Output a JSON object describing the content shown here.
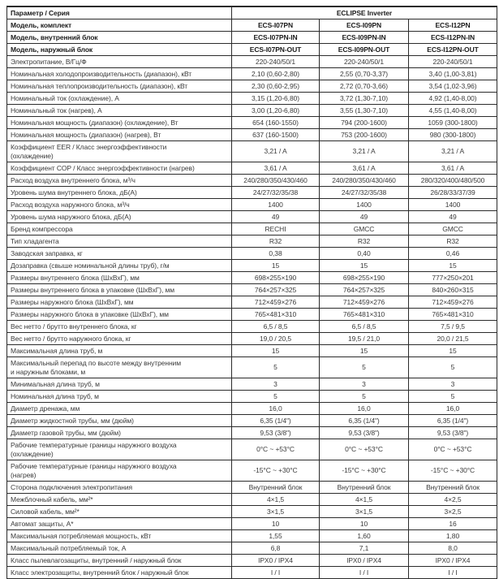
{
  "table": {
    "header": {
      "param_label": "Параметр / Серия",
      "series_label": "ECLIPSE Inverter"
    },
    "rows": [
      {
        "label": "Модель, комплект",
        "values": [
          "ECS-I07PN",
          "ECS-I09PN",
          "ECS-I12PN"
        ],
        "bold": true
      },
      {
        "label": "Модель, внутренний блок",
        "values": [
          "ECS-I07PN-IN",
          "ECS-I09PN-IN",
          "ECS-I12PN-IN"
        ],
        "bold": true
      },
      {
        "label": "Модель, наружный блок",
        "values": [
          "ECS-I07PN-OUT",
          "ECS-I09PN-OUT",
          "ECS-I12PN-OUT"
        ],
        "bold": true
      },
      {
        "label": "Электропитание, В/Гц/Ф",
        "values": [
          "220-240/50/1",
          "220-240/50/1",
          "220-240/50/1"
        ]
      },
      {
        "label": "Номинальная холодопроизводительность (диапазон), кВт",
        "values": [
          "2,10 (0,60-2,80)",
          "2,55 (0,70-3,37)",
          "3,40 (1,00-3,81)"
        ]
      },
      {
        "label": "Номинальная теплопроизводительность (диапазон), кВт",
        "values": [
          "2,30 (0,60-2,95)",
          "2,72 (0,70-3,66)",
          "3,54 (1,02-3,96)"
        ]
      },
      {
        "label": "Номинальный ток (охлаждение), А",
        "values": [
          "3,15 (1,20-6,80)",
          "3,72 (1,30-7,10)",
          "4,92 (1,40-8,00)"
        ]
      },
      {
        "label": "Номинальный ток (нагрев), А",
        "values": [
          "3,00 (1,20-6,80)",
          "3,55 (1,30-7,10)",
          "4,55 (1,40-8,00)"
        ]
      },
      {
        "label": "Номинальная мощность (диапазон) (охлаждение), Вт",
        "values": [
          "654 (160-1550)",
          "794 (200-1600)",
          "1059 (300-1800)"
        ]
      },
      {
        "label": "Номинальная мощность (диапазон) (нагрев), Вт",
        "values": [
          "637 (160-1500)",
          "753 (200-1600)",
          "980 (300-1800)"
        ]
      },
      {
        "label": "Коэффициент EER / Класс энергоэффективности\n(охлаждение)",
        "values": [
          "3,21 / A",
          "3,21 / A",
          "3,21 / A"
        ]
      },
      {
        "label": "Коэффициент COP / Класс энергоэффективности (нагрев)",
        "values": [
          "3,61 / A",
          "3,61 / A",
          "3,61 / A"
        ]
      },
      {
        "label": "Расход воздуха внутреннего блока, м³/ч",
        "values": [
          "240/280/350/430/460",
          "240/280/350/430/460",
          "280/320/400/480/500"
        ]
      },
      {
        "label": "Уровень шума внутреннего блока, дБ(А)",
        "values": [
          "24/27/32/35/38",
          "24/27/32/35/38",
          "26/28/33/37/39"
        ]
      },
      {
        "label": "Расход воздуха наружного блока, м³/ч",
        "values": [
          "1400",
          "1400",
          "1400"
        ]
      },
      {
        "label": "Уровень шума наружного блока, дБ(А)",
        "values": [
          "49",
          "49",
          "49"
        ]
      },
      {
        "label": "Бренд компрессора",
        "values": [
          "RECHI",
          "GMCC",
          "GMCC"
        ]
      },
      {
        "label": "Тип хладагента",
        "values": [
          "R32",
          "R32",
          "R32"
        ]
      },
      {
        "label": "Заводская заправка, кг",
        "values": [
          "0,38",
          "0,40",
          "0,46"
        ]
      },
      {
        "label": "Дозаправка (свыше номинальной длины труб), г/м",
        "values": [
          "15",
          "15",
          "15"
        ]
      },
      {
        "label": "Размеры внутреннего блока (ШхВхГ), мм",
        "values": [
          "698×255×190",
          "698×255×190",
          "777×250×201"
        ]
      },
      {
        "label": "Размеры внутреннего блока в упаковке (ШхВхГ), мм",
        "values": [
          "764×257×325",
          "764×257×325",
          "840×260×315"
        ]
      },
      {
        "label": "Размеры наружного блока (ШхВхГ), мм",
        "values": [
          "712×459×276",
          "712×459×276",
          "712×459×276"
        ]
      },
      {
        "label": "Размеры наружного блока в упаковке (ШхВхГ), мм",
        "values": [
          "765×481×310",
          "765×481×310",
          "765×481×310"
        ]
      },
      {
        "label": "Вес нетто / брутто внутреннего блока, кг",
        "values": [
          "6,5 / 8,5",
          "6,5 / 8,5",
          "7,5 / 9,5"
        ]
      },
      {
        "label": "Вес нетто / брутто наружного блока, кг",
        "values": [
          "19,0 / 20,5",
          "19,5 / 21,0",
          "20,0 / 21,5"
        ]
      },
      {
        "label": "Максимальная длина труб, м",
        "values": [
          "15",
          "15",
          "15"
        ]
      },
      {
        "label": "Максимальный перепад по высоте между внутренним\nи наружным блоками, м",
        "values": [
          "5",
          "5",
          "5"
        ]
      },
      {
        "label": "Минимальная длина труб, м",
        "values": [
          "3",
          "3",
          "3"
        ]
      },
      {
        "label": "Номинальная длина труб, м",
        "values": [
          "5",
          "5",
          "5"
        ]
      },
      {
        "label": "Диаметр дренажа, мм",
        "values": [
          "16,0",
          "16,0",
          "16,0"
        ]
      },
      {
        "label": "Диаметр жидкостной трубы, мм (дюйм)",
        "values": [
          "6,35 (1/4\")",
          "6,35 (1/4\")",
          "6,35 (1/4\")"
        ]
      },
      {
        "label": "Диаметр газовой трубы, мм (дюйм)",
        "values": [
          "9,53 (3/8\")",
          "9,53 (3/8\")",
          "9,53 (3/8\")"
        ]
      },
      {
        "label": "Рабочие температурные границы наружного воздуха\n(охлаждение)",
        "values": [
          "0°C ~ +53°C",
          "0°C ~ +53°C",
          "0°C ~ +53°C"
        ]
      },
      {
        "label": "Рабочие температурные границы наружного воздуха\n(нагрев)",
        "values": [
          "-15°C ~ +30°C",
          "-15°C ~ +30°C",
          "-15°C ~ +30°C"
        ]
      },
      {
        "label": "Сторона подключения электропитания",
        "values": [
          "Внутренний блок",
          "Внутренний блок",
          "Внутренний блок"
        ]
      },
      {
        "label": "Межблочный кабель, мм²*",
        "values": [
          "4×1,5",
          "4×1,5",
          "4×2,5"
        ]
      },
      {
        "label": "Силовой кабель, мм²*",
        "values": [
          "3×1,5",
          "3×1,5",
          "3×2,5"
        ]
      },
      {
        "label": "Автомат защиты, А*",
        "values": [
          "10",
          "10",
          "16"
        ]
      },
      {
        "label": "Максимальная потребляемая мощность, кВт",
        "values": [
          "1,55",
          "1,60",
          "1,80"
        ]
      },
      {
        "label": "Максимальный потребляемый ток, А",
        "values": [
          "6,8",
          "7,1",
          "8,0"
        ]
      },
      {
        "label": "Класс пылевлагозащиты, внутренний / наружный блок",
        "values": [
          "IPX0 / IPX4",
          "IPX0 / IPX4",
          "IPX0 / IPX4"
        ]
      },
      {
        "label": "Класс электрозащиты, внутренний блок / наружный блок",
        "values": [
          "I / I",
          "I / I",
          "I / I"
        ]
      }
    ],
    "colors": {
      "border": "#2b2b2b",
      "text": "#3a3a3a",
      "bold_text": "#1b1b1b",
      "background": "#ffffff"
    }
  }
}
